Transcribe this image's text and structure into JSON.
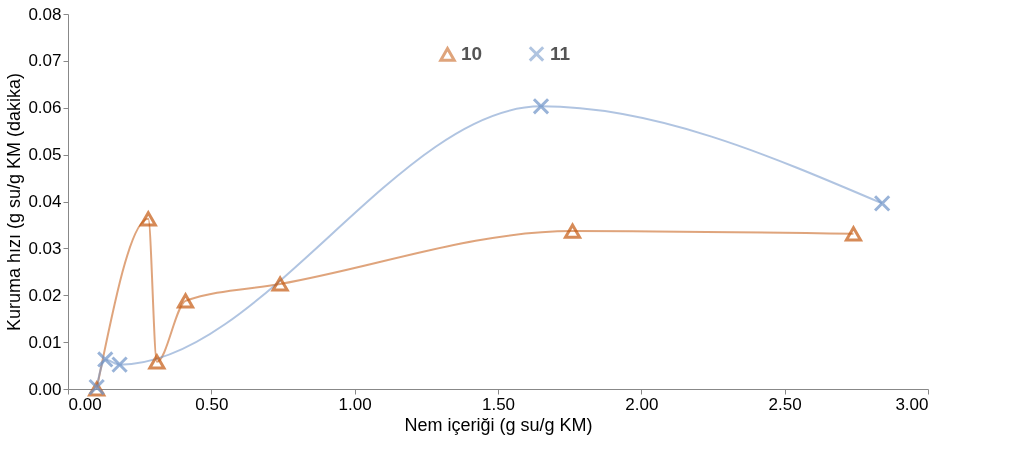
{
  "chart_data": {
    "type": "line",
    "xlabel": "Nem içeriği (g su/g KM)",
    "ylabel": "Kuruma hızı (g su/g KM (dakika)",
    "series": [
      {
        "name": "10",
        "color": "#c55a11",
        "marker": "triangle",
        "x": [
          0.1,
          0.28,
          0.31,
          0.41,
          0.74,
          1.76,
          2.74
        ],
        "values": [
          0.0,
          0.0363,
          0.0058,
          0.0188,
          0.0224,
          0.0337,
          0.0331
        ]
      },
      {
        "name": "11",
        "color": "#6f94c8",
        "marker": "cross",
        "x": [
          0.1,
          0.13,
          0.18,
          1.65,
          2.84
        ],
        "values": [
          0.0004,
          0.0063,
          0.0052,
          0.0603,
          0.0396
        ]
      }
    ],
    "xlim": [
      0,
      3
    ],
    "ylim": [
      0,
      0.08
    ],
    "xticks": [
      {
        "value": 0,
        "label": "0.00"
      },
      {
        "value": 0.5,
        "label": "0.50"
      },
      {
        "value": 1,
        "label": "1.00"
      },
      {
        "value": 1.5,
        "label": "1.50"
      },
      {
        "value": 2,
        "label": "2.00"
      },
      {
        "value": 2.5,
        "label": "2.50"
      },
      {
        "value": 3,
        "label": "3.00"
      }
    ],
    "yticks": [
      {
        "value": 0,
        "label": "0.00"
      },
      {
        "value": 0.01,
        "label": "0.01"
      },
      {
        "value": 0.02,
        "label": "0.02"
      },
      {
        "value": 0.03,
        "label": "0.03"
      },
      {
        "value": 0.04,
        "label": "0.04"
      },
      {
        "value": 0.05,
        "label": "0.05"
      },
      {
        "value": 0.06,
        "label": "0.06"
      },
      {
        "value": 0.07,
        "label": "0.07"
      },
      {
        "value": 0.08,
        "label": "0.08"
      }
    ],
    "grid": false,
    "legend": "top",
    "line_style": "solid"
  }
}
